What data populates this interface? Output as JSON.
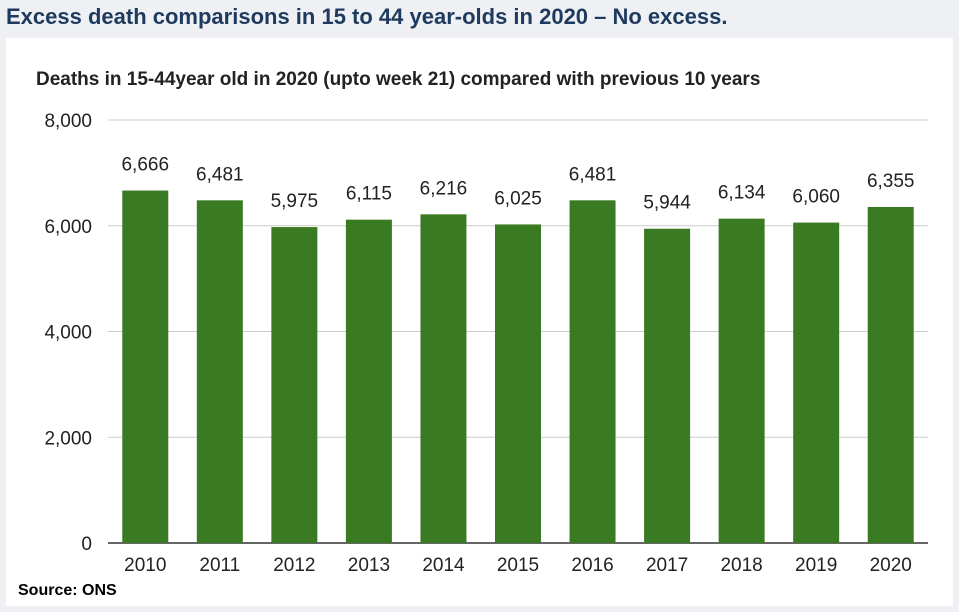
{
  "page": {
    "title": "Excess death comparisons in 15 to 44 year-olds in 2020 – No excess.",
    "source": "Source: ONS"
  },
  "colors": {
    "bar": "#3a7a22",
    "title_text": "#1f3a5f",
    "gridline": "#cccccc"
  },
  "chart_data": {
    "type": "bar",
    "title": "Deaths in  15-44year old  in 2020 (upto week 21) compared with previous 10 years",
    "xlabel": "",
    "ylabel": "",
    "categories": [
      "2010",
      "2011",
      "2012",
      "2013",
      "2014",
      "2015",
      "2016",
      "2017",
      "2018",
      "2019",
      "2020"
    ],
    "values": [
      6666,
      6481,
      5975,
      6115,
      6216,
      6025,
      6481,
      5944,
      6134,
      6060,
      6355
    ],
    "value_labels": [
      "6,666",
      "6,481",
      "5,975",
      "6,115",
      "6,216",
      "6,025",
      "6,481",
      "5,944",
      "6,134",
      "6,060",
      "6,355"
    ],
    "ylim": [
      0,
      8000
    ],
    "yticks": [
      0,
      2000,
      4000,
      6000,
      8000
    ],
    "ytick_labels": [
      "0",
      "2,000",
      "4,000",
      "6,000",
      "8,000"
    ],
    "grid": true,
    "legend": "none"
  }
}
